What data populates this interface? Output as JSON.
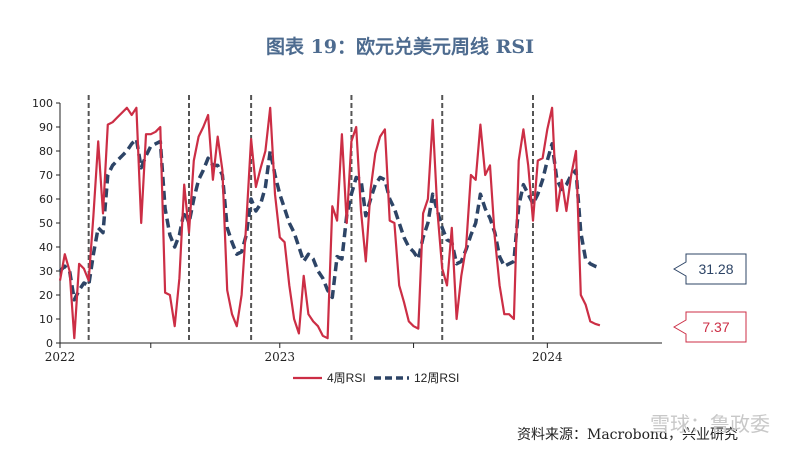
{
  "title": "图表 19：欧元兑美元周线 RSI",
  "source": "资料来源：Macrobond，兴业研究",
  "watermark": "雪球：鲁政委",
  "colors": {
    "rsi4": "#cc2e45",
    "rsi12": "#2d4466",
    "vline": "#555555"
  },
  "chart_data": {
    "type": "line",
    "title": "图表 19：欧元兑美元周线 RSI",
    "ylim": [
      0,
      100
    ],
    "yticks": [
      0,
      10,
      20,
      30,
      40,
      50,
      60,
      70,
      80,
      90,
      100
    ],
    "xlim": [
      0,
      126
    ],
    "xtick_labels": [
      {
        "x": 0,
        "label": "2022"
      },
      {
        "x": 46,
        "label": "2023"
      },
      {
        "x": 102,
        "label": "2024"
      }
    ],
    "xtick_marks": [
      0,
      19,
      46,
      74,
      102
    ],
    "vlines": [
      6,
      27,
      40,
      61,
      80,
      99
    ],
    "legend": {
      "position": "bottom",
      "entries": [
        "4周RSI",
        "12周RSI"
      ]
    },
    "annotations": [
      {
        "series": "12周RSI",
        "value": 31.28,
        "label": "31.28"
      },
      {
        "series": "4周RSI",
        "value": 7.37,
        "label": "7.37"
      }
    ],
    "series": [
      {
        "name": "4周RSI",
        "style": "solid",
        "values": [
          26,
          37,
          30,
          2,
          33,
          31,
          26,
          53,
          84,
          54,
          91,
          92,
          94,
          96,
          98,
          95,
          98,
          50,
          87,
          87,
          88,
          90,
          21,
          20,
          7,
          27,
          66,
          46,
          76,
          86,
          90,
          95,
          68,
          86,
          72,
          22,
          12,
          7,
          20,
          50,
          85,
          65,
          73,
          80,
          98,
          62,
          44,
          42,
          24,
          10,
          4,
          28,
          12,
          9,
          7,
          3,
          2,
          57,
          51,
          87,
          50,
          84,
          90,
          55,
          34,
          64,
          79,
          86,
          89,
          51,
          50,
          24,
          17,
          9,
          7,
          6,
          54,
          60,
          93,
          55,
          31,
          24,
          48,
          10,
          28,
          40,
          70,
          68,
          91,
          70,
          74,
          44,
          24,
          12,
          12,
          10,
          76,
          89,
          74,
          51,
          76,
          77,
          89,
          98,
          55,
          68,
          55,
          70,
          80,
          20,
          16,
          9,
          8,
          7.37
        ]
      },
      {
        "name": "12周RSI",
        "style": "dashed",
        "values": [
          30,
          32,
          30,
          18,
          22,
          25,
          24,
          37,
          48,
          46,
          70,
          74,
          76,
          78,
          80,
          83,
          85,
          73,
          78,
          82,
          83,
          84,
          56,
          45,
          40,
          45,
          55,
          50,
          60,
          68,
          72,
          77,
          74,
          74,
          70,
          48,
          42,
          37,
          38,
          45,
          60,
          55,
          58,
          65,
          80,
          70,
          62,
          56,
          50,
          46,
          40,
          34,
          37,
          35,
          30,
          27,
          22,
          19,
          36,
          35,
          53,
          62,
          69,
          68,
          53,
          60,
          66,
          69,
          68,
          60,
          56,
          50,
          44,
          40,
          38,
          35,
          44,
          50,
          62,
          55,
          48,
          43,
          42,
          33,
          34,
          39,
          45,
          50,
          62,
          56,
          52,
          46,
          36,
          32,
          33,
          34,
          57,
          66,
          62,
          58,
          62,
          68,
          76,
          83,
          68,
          64,
          66,
          70,
          72,
          46,
          35,
          33,
          32,
          31.28
        ]
      }
    ]
  }
}
